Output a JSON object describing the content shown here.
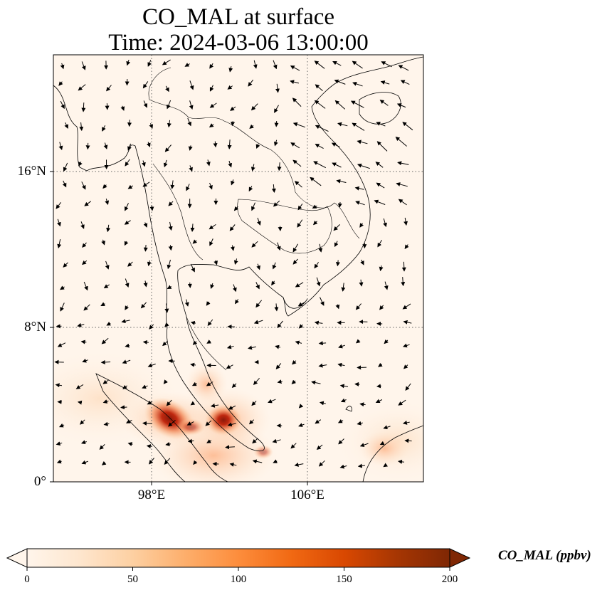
{
  "title_line1": "CO_MAL at surface",
  "title_line2": "Time: 2024-03-06 13:00:00",
  "lat_labels": [
    "16°N",
    "8°N",
    "0°"
  ],
  "lon_labels": [
    "98°E",
    "106°E"
  ],
  "colorbar": {
    "label": "CO_MAL (ppbv)",
    "ticks": [
      "0",
      "50",
      "100",
      "150",
      "200"
    ],
    "min": 0,
    "max": 200,
    "cmap": [
      "#fff5eb",
      "#fee6ce",
      "#fdd0a2",
      "#fdae6b",
      "#fd8d3c",
      "#f16913",
      "#d94801",
      "#a63603",
      "#7f2704"
    ]
  },
  "map": {
    "lon_range": [
      93,
      112
    ],
    "lat_range": [
      0,
      22
    ],
    "background_color": "#fff5eb",
    "gridlines_dotted": true
  }
}
